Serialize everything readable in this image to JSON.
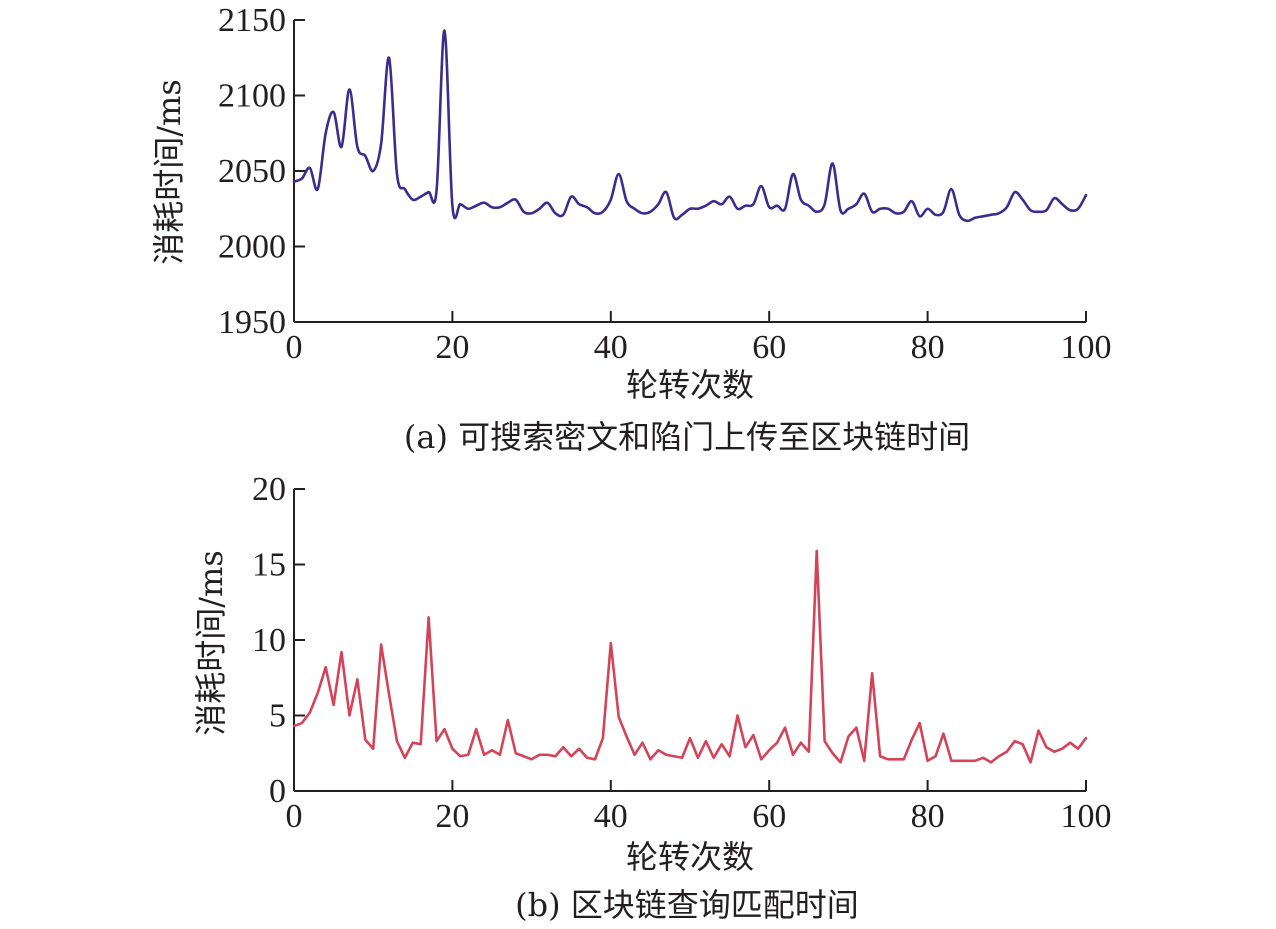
{
  "chart_data": [
    {
      "type": "line",
      "caption": "(a) 可搜索密文和陷门上传至区块链时间",
      "xlabel": "轮转次数",
      "ylabel": "消耗时间/ms",
      "xlim": [
        0,
        100
      ],
      "ylim": [
        1950,
        2150
      ],
      "xticks": [
        0,
        20,
        40,
        60,
        80,
        100
      ],
      "yticks": [
        1950,
        2000,
        2050,
        2100,
        2150
      ],
      "line_color": "#3d2c8d",
      "smooth": true,
      "series": [
        {
          "x": [
            0,
            1,
            2,
            3,
            4,
            5,
            6,
            7,
            8,
            9,
            10,
            11,
            12,
            13,
            14,
            15,
            16,
            17,
            18,
            19,
            20,
            21,
            22,
            23,
            24,
            25,
            26,
            27,
            28,
            29,
            30,
            31,
            32,
            33,
            34,
            35,
            36,
            37,
            38,
            39,
            40,
            41,
            42,
            43,
            44,
            45,
            46,
            47,
            48,
            49,
            50,
            51,
            52,
            53,
            54,
            55,
            56,
            57,
            58,
            59,
            60,
            61,
            62,
            63,
            64,
            65,
            66,
            67,
            68,
            69,
            70,
            71,
            72,
            73,
            74,
            75,
            76,
            77,
            78,
            79,
            80,
            81,
            82,
            83,
            84,
            85,
            86,
            87,
            88,
            89,
            90,
            91,
            92,
            93,
            94,
            95,
            96,
            97,
            98,
            99,
            100
          ],
          "values": [
            2043,
            2045,
            2052,
            2038,
            2075,
            2089,
            2066,
            2104,
            2066,
            2060,
            2050,
            2068,
            2125,
            2048,
            2038,
            2031,
            2033,
            2036,
            2037,
            2143,
            2027,
            2028,
            2025,
            2027,
            2029,
            2026,
            2026,
            2029,
            2031,
            2023,
            2022,
            2025,
            2029,
            2022,
            2021,
            2033,
            2028,
            2026,
            2022,
            2023,
            2031,
            2048,
            2030,
            2025,
            2022,
            2023,
            2028,
            2036,
            2019,
            2021,
            2025,
            2025,
            2027,
            2030,
            2028,
            2033,
            2025,
            2027,
            2028,
            2040,
            2026,
            2027,
            2025,
            2048,
            2031,
            2027,
            2023,
            2028,
            2055,
            2024,
            2025,
            2028,
            2035,
            2023,
            2025,
            2025,
            2022,
            2023,
            2030,
            2020,
            2025,
            2021,
            2023,
            2038,
            2021,
            2017,
            2019,
            2020,
            2021,
            2022,
            2026,
            2036,
            2031,
            2024,
            2023,
            2024,
            2032,
            2028,
            2024,
            2025,
            2034
          ]
        }
      ]
    },
    {
      "type": "line",
      "caption": "(b) 区块链查询匹配时间",
      "xlabel": "轮转次数",
      "ylabel": "消耗时间/ms",
      "xlim": [
        0,
        100
      ],
      "ylim": [
        0,
        20
      ],
      "xticks": [
        0,
        20,
        40,
        60,
        80,
        100
      ],
      "yticks": [
        0,
        5,
        10,
        15,
        20
      ],
      "line_color": "#d44459",
      "smooth": false,
      "series": [
        {
          "x": [
            0,
            1,
            2,
            3,
            4,
            5,
            6,
            7,
            8,
            9,
            10,
            11,
            12,
            13,
            14,
            15,
            16,
            17,
            18,
            19,
            20,
            21,
            22,
            23,
            24,
            25,
            26,
            27,
            28,
            29,
            30,
            31,
            32,
            33,
            34,
            35,
            36,
            37,
            38,
            39,
            40,
            41,
            42,
            43,
            44,
            45,
            46,
            47,
            48,
            49,
            50,
            51,
            52,
            53,
            54,
            55,
            56,
            57,
            58,
            59,
            60,
            61,
            62,
            63,
            64,
            65,
            66,
            67,
            68,
            69,
            70,
            71,
            72,
            73,
            74,
            75,
            76,
            77,
            78,
            79,
            80,
            81,
            82,
            83,
            84,
            85,
            86,
            87,
            88,
            89,
            90,
            91,
            92,
            93,
            94,
            95,
            96,
            97,
            98,
            99,
            100
          ],
          "values": [
            4.3,
            4.5,
            5.2,
            6.5,
            8.2,
            5.7,
            9.2,
            5.0,
            7.4,
            3.4,
            2.8,
            9.7,
            6.4,
            3.3,
            2.2,
            3.2,
            3.1,
            11.5,
            3.3,
            4.1,
            2.8,
            2.3,
            2.4,
            4.1,
            2.4,
            2.7,
            2.4,
            4.7,
            2.5,
            2.3,
            2.1,
            2.4,
            2.4,
            2.3,
            2.9,
            2.3,
            2.8,
            2.2,
            2.1,
            3.5,
            9.8,
            4.9,
            3.6,
            2.4,
            3.2,
            2.1,
            2.7,
            2.4,
            2.3,
            2.2,
            3.5,
            2.2,
            3.3,
            2.2,
            3.1,
            2.3,
            5.0,
            2.9,
            3.7,
            2.1,
            2.7,
            3.2,
            4.2,
            2.4,
            3.2,
            2.6,
            15.9,
            3.3,
            2.5,
            1.9,
            3.6,
            4.2,
            2.0,
            7.8,
            2.3,
            2.1,
            2.1,
            2.1,
            3.4,
            4.5,
            2.0,
            2.3,
            3.8,
            2.0,
            2.0,
            2.0,
            2.0,
            2.2,
            1.9,
            2.3,
            2.6,
            3.3,
            3.1,
            1.9,
            4.0,
            2.9,
            2.6,
            2.8,
            3.2,
            2.8,
            3.5
          ]
        }
      ]
    }
  ]
}
